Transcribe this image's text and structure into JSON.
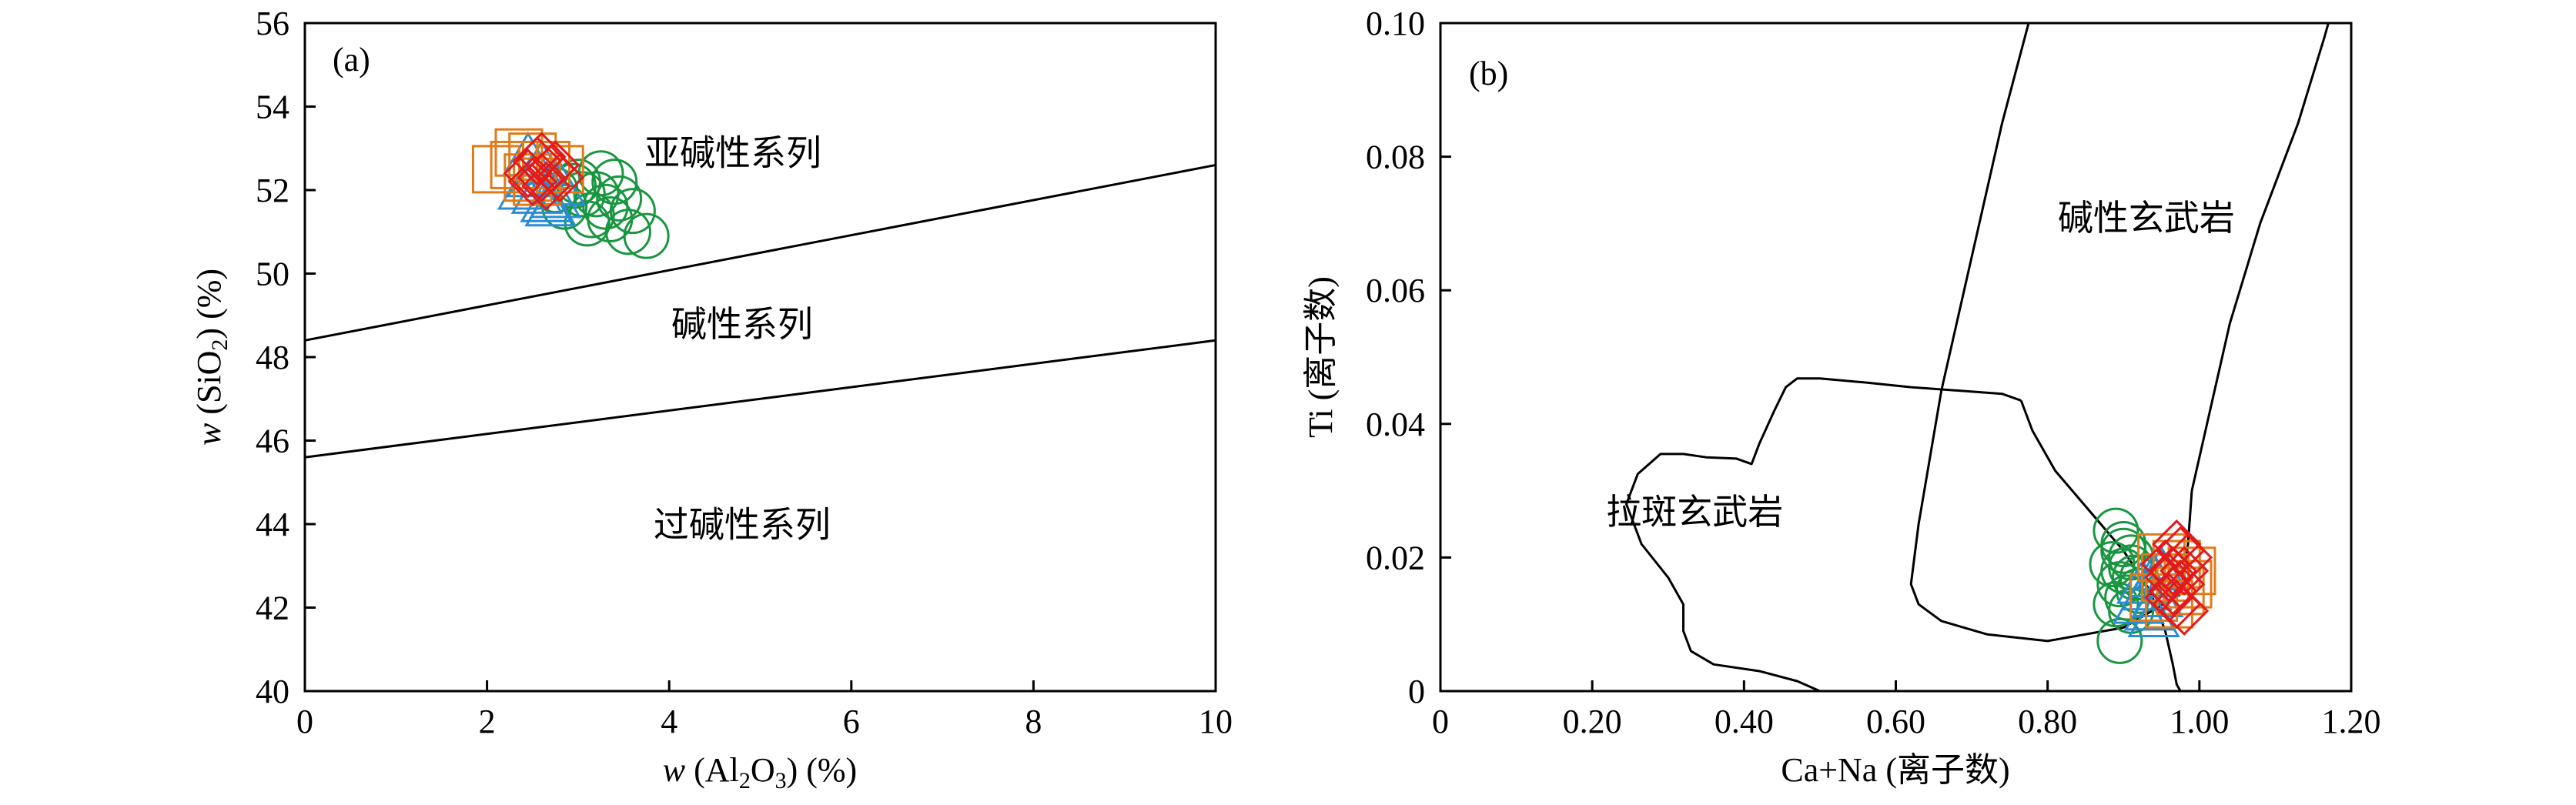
{
  "chart_data": [
    {
      "type": "scatter",
      "panel_label": "(a)",
      "xlabel_prefix": "w",
      "xlabel_chem": "(Al",
      "xlabel_sub1": "2",
      "xlabel_mid": "O",
      "xlabel_sub2": "3",
      "xlabel_suffix": ") (%)",
      "ylabel_prefix": "w",
      "ylabel_chem": "(SiO",
      "ylabel_sub": "2",
      "ylabel_suffix": ") (%)",
      "xlim": [
        0,
        10
      ],
      "ylim": [
        40,
        56
      ],
      "xticks": [
        0,
        2,
        4,
        6,
        8,
        10
      ],
      "xtick_labels": [
        "0",
        "2",
        "4",
        "6",
        "8",
        "10"
      ],
      "yticks": [
        40,
        42,
        44,
        46,
        48,
        50,
        52,
        54,
        56
      ],
      "ytick_labels": [
        "40",
        "42",
        "44",
        "46",
        "48",
        "50",
        "52",
        "54",
        "56"
      ],
      "boundary_lines": [
        {
          "x": [
            0,
            10
          ],
          "y": [
            48.4,
            52.6
          ]
        },
        {
          "x": [
            0,
            10
          ],
          "y": [
            45.6,
            48.4
          ]
        }
      ],
      "region_labels": [
        {
          "text": "亚碱性系列",
          "x": 4.7,
          "y": 52.6
        },
        {
          "text": "碱性系列",
          "x": 4.8,
          "y": 48.5
        },
        {
          "text": "过碱性系列",
          "x": 4.8,
          "y": 43.7
        }
      ],
      "series": [
        {
          "marker": "circle",
          "color": "#1a9641",
          "x": [
            3.0,
            3.2,
            3.4,
            3.35,
            3.55,
            3.75,
            3.3,
            3.1,
            2.85,
            3.45,
            3.6,
            3.25,
            3.05,
            2.95,
            3.15,
            2.75
          ],
          "y": [
            52.2,
            51.9,
            52.2,
            51.3,
            51.0,
            50.9,
            51.6,
            51.2,
            51.6,
            51.8,
            51.5,
            52.4,
            51.9,
            52.1,
            51.4,
            52.0
          ]
        },
        {
          "marker": "triangle",
          "color": "#2b8cd6",
          "x": [
            2.4,
            2.55,
            2.65,
            2.75,
            2.5,
            2.6,
            2.8,
            2.45,
            2.7
          ],
          "y": [
            52.0,
            51.9,
            51.7,
            51.8,
            52.3,
            52.6,
            52.1,
            52.8,
            51.6
          ]
        },
        {
          "marker": "square",
          "color": "#e07b1a",
          "x": [
            2.1,
            2.35,
            2.5,
            2.65,
            2.8,
            2.55,
            2.45,
            2.3
          ],
          "y": [
            52.5,
            52.9,
            52.8,
            52.6,
            52.5,
            52.2,
            52.3,
            52.6
          ]
        },
        {
          "marker": "diamond",
          "color": "#e31a1c",
          "x": [
            2.45,
            2.55,
            2.6,
            2.7,
            2.8,
            2.65,
            2.5,
            2.75,
            2.6
          ],
          "y": [
            52.4,
            52.7,
            52.3,
            52.5,
            52.3,
            52.1,
            52.2,
            52.6,
            52.8
          ]
        }
      ]
    },
    {
      "type": "scatter",
      "panel_label": "(b)",
      "xlabel": "Ca+Na (离子数)",
      "ylabel": "Ti (离子数)",
      "xlim": [
        0,
        1.2
      ],
      "ylim": [
        0,
        0.1
      ],
      "xticks": [
        0,
        0.2,
        0.4,
        0.6,
        0.8,
        1.0,
        1.2
      ],
      "xtick_labels": [
        "0",
        "0.20",
        "0.40",
        "0.60",
        "0.80",
        "1.00",
        "1.20"
      ],
      "yticks": [
        0,
        0.02,
        0.04,
        0.06,
        0.08,
        0.1
      ],
      "ytick_labels": [
        "0",
        "0.02",
        "0.04",
        "0.06",
        "0.08",
        "0.10"
      ],
      "field_curves": [
        {
          "x": [
            1.17,
            1.165,
            1.13,
            1.08,
            1.04,
            1.01,
            0.99,
            0.985,
            0.975,
            0.9,
            0.8,
            0.72,
            0.66,
            0.63,
            0.62,
            0.63,
            0.66,
            0.7,
            0.74,
            0.775
          ],
          "y": [
            0.1,
            0.098,
            0.085,
            0.07,
            0.055,
            0.04,
            0.03,
            0.022,
            0.0145,
            0.0095,
            0.0075,
            0.0085,
            0.0105,
            0.013,
            0.016,
            0.025,
            0.045,
            0.065,
            0.085,
            0.1
          ]
        },
        {
          "x": [
            0.765,
            0.78,
            0.81,
            0.855,
            0.9,
            0.935,
            0.955,
            0.965,
            0.97,
            0.975
          ],
          "y": [
            0.0435,
            0.039,
            0.033,
            0.027,
            0.021,
            0.015,
            0.009,
            0.004,
            0.001,
            0
          ]
        },
        {
          "x": [
            0.765,
            0.74,
            0.62,
            0.56,
            0.5,
            0.47,
            0.455,
            0.44,
            0.42,
            0.41,
            0.39,
            0.35,
            0.32,
            0.29,
            0.26,
            0.245,
            0.265,
            0.3,
            0.32,
            0.32,
            0.33,
            0.36,
            0.42,
            0.47,
            0.5
          ],
          "y": [
            0.0435,
            0.0445,
            0.0455,
            0.0462,
            0.0468,
            0.0468,
            0.0455,
            0.042,
            0.037,
            0.034,
            0.0348,
            0.035,
            0.0355,
            0.0355,
            0.0325,
            0.028,
            0.022,
            0.017,
            0.013,
            0.009,
            0.006,
            0.004,
            0.003,
            0.0015,
            0
          ]
        }
      ],
      "region_labels": [
        {
          "text": "碱性玄武岩",
          "x": 0.93,
          "y": 0.069
        },
        {
          "text": "拉斑玄武岩",
          "x": 0.335,
          "y": 0.025
        }
      ],
      "series": [
        {
          "marker": "circle",
          "color": "#1a9641",
          "x": [
            0.89,
            0.9,
            0.91,
            0.885,
            0.9,
            0.915,
            0.895,
            0.92,
            0.905,
            0.89,
            0.91,
            0.925,
            0.9,
            0.895,
            0.91
          ],
          "y": [
            0.024,
            0.022,
            0.02,
            0.019,
            0.018,
            0.017,
            0.016,
            0.015,
            0.014,
            0.013,
            0.012,
            0.017,
            0.021,
            0.0075,
            0.0185
          ]
        },
        {
          "marker": "triangle",
          "color": "#2b8cd6",
          "x": [
            0.92,
            0.93,
            0.94,
            0.935,
            0.945,
            0.95,
            0.925,
            0.94
          ],
          "y": [
            0.013,
            0.015,
            0.017,
            0.012,
            0.014,
            0.018,
            0.016,
            0.011
          ]
        },
        {
          "marker": "square",
          "color": "#e07b1a",
          "x": [
            0.94,
            0.955,
            0.97,
            0.985,
            0.96,
            0.975,
            0.99,
            0.95
          ],
          "y": [
            0.014,
            0.017,
            0.019,
            0.016,
            0.013,
            0.015,
            0.018,
            0.02
          ]
        },
        {
          "marker": "diamond",
          "color": "#e31a1c",
          "x": [
            0.955,
            0.96,
            0.965,
            0.97,
            0.975,
            0.98,
            0.985,
            0.96,
            0.97,
            0.975,
            0.98,
            0.965
          ],
          "y": [
            0.019,
            0.017,
            0.015,
            0.013,
            0.021,
            0.018,
            0.02,
            0.014,
            0.022,
            0.016,
            0.012,
            0.018
          ]
        }
      ]
    }
  ]
}
